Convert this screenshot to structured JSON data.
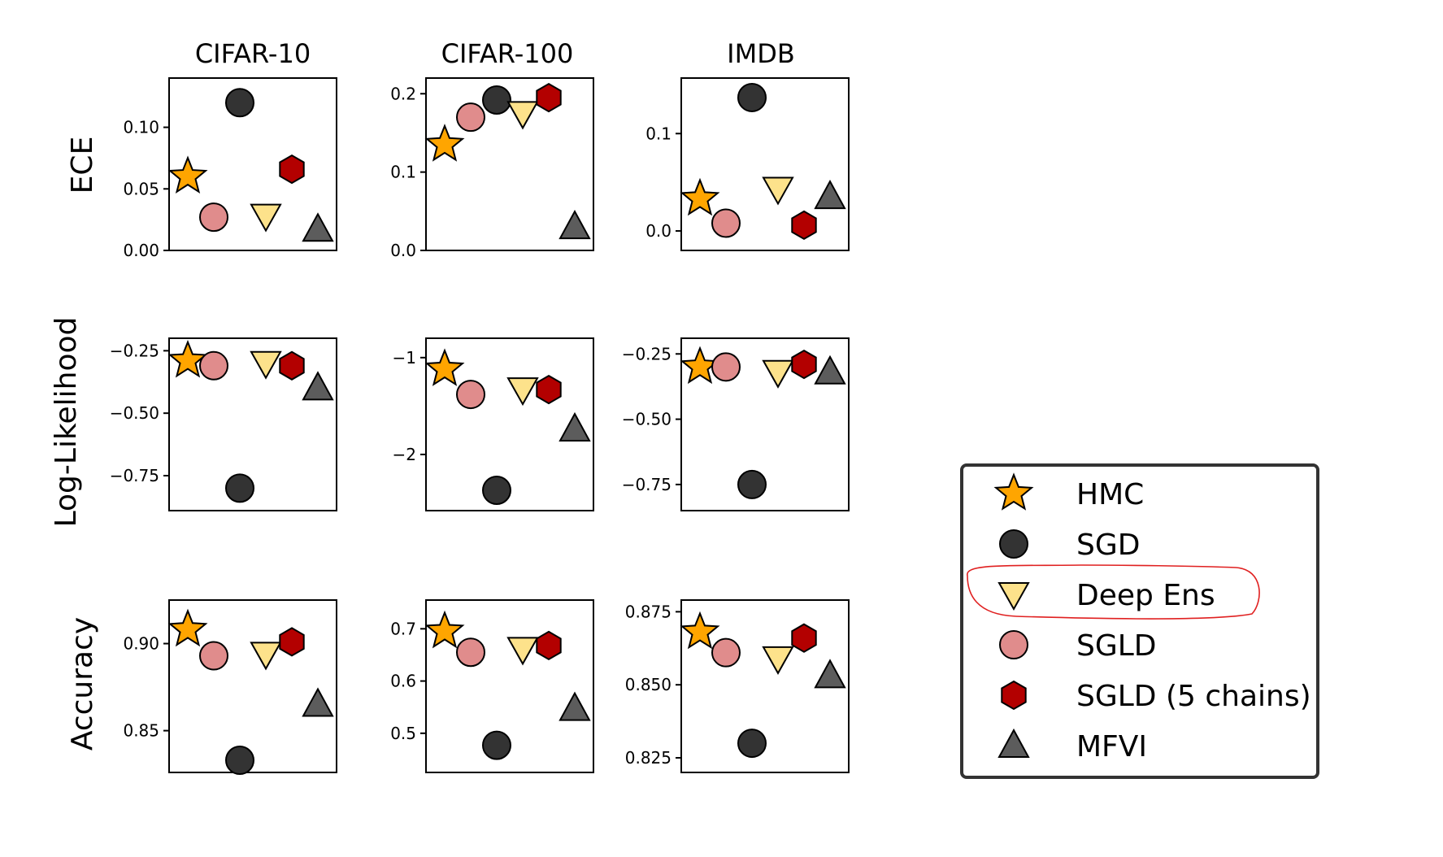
{
  "legend": {
    "placement": "right",
    "items": [
      {
        "label": "HMC",
        "marker": "star",
        "color": "#ffa500"
      },
      {
        "label": "SGD",
        "marker": "circle",
        "color": "#333333"
      },
      {
        "label": "Deep Ens",
        "marker": "triangle-down",
        "color": "#fde28b"
      },
      {
        "label": "SGLD",
        "marker": "circle",
        "color": "#e08c8c"
      },
      {
        "label": "SGLD (5 chains)",
        "marker": "hexagon",
        "color": "#b30000"
      },
      {
        "label": "MFVI",
        "marker": "triangle-up",
        "color": "#5c5c5c"
      }
    ],
    "highlighted": "Deep Ens",
    "highlight_color": "#e02020"
  },
  "chart_data": [
    {
      "type": "scatter",
      "title": "CIFAR-10",
      "ylabel": "ECE",
      "ylim": [
        0.0,
        0.14
      ],
      "yticks": [
        0.0,
        0.05,
        0.1
      ],
      "ytick_labels": [
        "0.00",
        "0.05",
        "0.10"
      ],
      "series": [
        {
          "name": "HMC",
          "x": 1,
          "y": 0.06
        },
        {
          "name": "SGLD",
          "x": 2,
          "y": 0.027
        },
        {
          "name": "SGD",
          "x": 3,
          "y": 0.12
        },
        {
          "name": "Deep Ens",
          "x": 4,
          "y": 0.028
        },
        {
          "name": "SGLD (5 chains)",
          "x": 5,
          "y": 0.066
        },
        {
          "name": "MFVI",
          "x": 6,
          "y": 0.017
        }
      ]
    },
    {
      "type": "scatter",
      "title": "CIFAR-100",
      "ylabel": "",
      "ylim": [
        0.0,
        0.22
      ],
      "yticks": [
        0.0,
        0.1,
        0.2
      ],
      "ytick_labels": [
        "0.0",
        "0.1",
        "0.2"
      ],
      "series": [
        {
          "name": "HMC",
          "x": 1,
          "y": 0.135
        },
        {
          "name": "SGLD",
          "x": 2,
          "y": 0.17
        },
        {
          "name": "SGD",
          "x": 3,
          "y": 0.192
        },
        {
          "name": "Deep Ens",
          "x": 4,
          "y": 0.175
        },
        {
          "name": "SGLD (5 chains)",
          "x": 5,
          "y": 0.195
        },
        {
          "name": "MFVI",
          "x": 6,
          "y": 0.03
        }
      ]
    },
    {
      "type": "scatter",
      "title": "IMDB",
      "ylabel": "",
      "ylim": [
        -0.02,
        0.157
      ],
      "yticks": [
        0.0,
        0.1
      ],
      "ytick_labels": [
        "0.0",
        "0.1"
      ],
      "series": [
        {
          "name": "HMC",
          "x": 1,
          "y": 0.033
        },
        {
          "name": "SGLD",
          "x": 2,
          "y": 0.008
        },
        {
          "name": "SGD",
          "x": 3,
          "y": 0.137
        },
        {
          "name": "Deep Ens",
          "x": 4,
          "y": 0.043
        },
        {
          "name": "SGLD (5 chains)",
          "x": 5,
          "y": 0.006
        },
        {
          "name": "MFVI",
          "x": 6,
          "y": 0.035
        }
      ]
    },
    {
      "type": "scatter",
      "title": "",
      "ylabel": "Log-Likelihood",
      "ylim": [
        -0.89,
        -0.2
      ],
      "yticks": [
        -0.25,
        -0.5,
        -0.75
      ],
      "ytick_labels": [
        "−0.25",
        "−0.50",
        "−0.75"
      ],
      "series": [
        {
          "name": "HMC",
          "x": 1,
          "y": -0.29
        },
        {
          "name": "SGLD",
          "x": 2,
          "y": -0.31
        },
        {
          "name": "SGD",
          "x": 3,
          "y": -0.8
        },
        {
          "name": "Deep Ens",
          "x": 4,
          "y": -0.3
        },
        {
          "name": "SGLD (5 chains)",
          "x": 5,
          "y": -0.31
        },
        {
          "name": "MFVI",
          "x": 6,
          "y": -0.4
        }
      ]
    },
    {
      "type": "scatter",
      "title": "",
      "ylabel": "",
      "ylim": [
        -2.58,
        -0.8
      ],
      "yticks": [
        -1,
        -2
      ],
      "ytick_labels": [
        "−1",
        "−2"
      ],
      "series": [
        {
          "name": "HMC",
          "x": 1,
          "y": -1.12
        },
        {
          "name": "SGLD",
          "x": 2,
          "y": -1.38
        },
        {
          "name": "SGD",
          "x": 3,
          "y": -2.37
        },
        {
          "name": "Deep Ens",
          "x": 4,
          "y": -1.33
        },
        {
          "name": "SGLD (5 chains)",
          "x": 5,
          "y": -1.33
        },
        {
          "name": "MFVI",
          "x": 6,
          "y": -1.74
        }
      ]
    },
    {
      "type": "scatter",
      "title": "",
      "ylabel": "",
      "ylim": [
        -0.85,
        -0.19
      ],
      "yticks": [
        -0.25,
        -0.5,
        -0.75
      ],
      "ytick_labels": [
        "−0.25",
        "−0.50",
        "−0.75"
      ],
      "series": [
        {
          "name": "HMC",
          "x": 1,
          "y": -0.3
        },
        {
          "name": "SGLD",
          "x": 2,
          "y": -0.3
        },
        {
          "name": "SGD",
          "x": 3,
          "y": -0.75
        },
        {
          "name": "Deep Ens",
          "x": 4,
          "y": -0.32
        },
        {
          "name": "SGLD (5 chains)",
          "x": 5,
          "y": -0.29
        },
        {
          "name": "MFVI",
          "x": 6,
          "y": -0.32
        }
      ]
    },
    {
      "type": "scatter",
      "title": "",
      "ylabel": "Accuracy",
      "ylim": [
        0.826,
        0.925
      ],
      "yticks": [
        0.85,
        0.9
      ],
      "ytick_labels": [
        "0.85",
        "0.90"
      ],
      "series": [
        {
          "name": "HMC",
          "x": 1,
          "y": 0.908
        },
        {
          "name": "SGLD",
          "x": 2,
          "y": 0.893
        },
        {
          "name": "SGD",
          "x": 3,
          "y": 0.833
        },
        {
          "name": "Deep Ens",
          "x": 4,
          "y": 0.894
        },
        {
          "name": "SGLD (5 chains)",
          "x": 5,
          "y": 0.901
        },
        {
          "name": "MFVI",
          "x": 6,
          "y": 0.865
        }
      ]
    },
    {
      "type": "scatter",
      "title": "",
      "ylabel": "",
      "ylim": [
        0.425,
        0.755
      ],
      "yticks": [
        0.5,
        0.6,
        0.7
      ],
      "ytick_labels": [
        "0.5",
        "0.6",
        "0.7"
      ],
      "series": [
        {
          "name": "HMC",
          "x": 1,
          "y": 0.695
        },
        {
          "name": "SGLD",
          "x": 2,
          "y": 0.655
        },
        {
          "name": "SGD",
          "x": 3,
          "y": 0.477
        },
        {
          "name": "Deep Ens",
          "x": 4,
          "y": 0.661
        },
        {
          "name": "SGLD (5 chains)",
          "x": 5,
          "y": 0.668
        },
        {
          "name": "MFVI",
          "x": 6,
          "y": 0.547
        }
      ]
    },
    {
      "type": "scatter",
      "title": "",
      "ylabel": "",
      "ylim": [
        0.82,
        0.879
      ],
      "yticks": [
        0.825,
        0.85,
        0.875
      ],
      "ytick_labels": [
        "0.825",
        "0.850",
        "0.875"
      ],
      "series": [
        {
          "name": "HMC",
          "x": 1,
          "y": 0.868
        },
        {
          "name": "SGLD",
          "x": 2,
          "y": 0.861
        },
        {
          "name": "SGD",
          "x": 3,
          "y": 0.83
        },
        {
          "name": "Deep Ens",
          "x": 4,
          "y": 0.859
        },
        {
          "name": "SGLD (5 chains)",
          "x": 5,
          "y": 0.866
        },
        {
          "name": "MFVI",
          "x": 6,
          "y": 0.853
        }
      ]
    }
  ]
}
